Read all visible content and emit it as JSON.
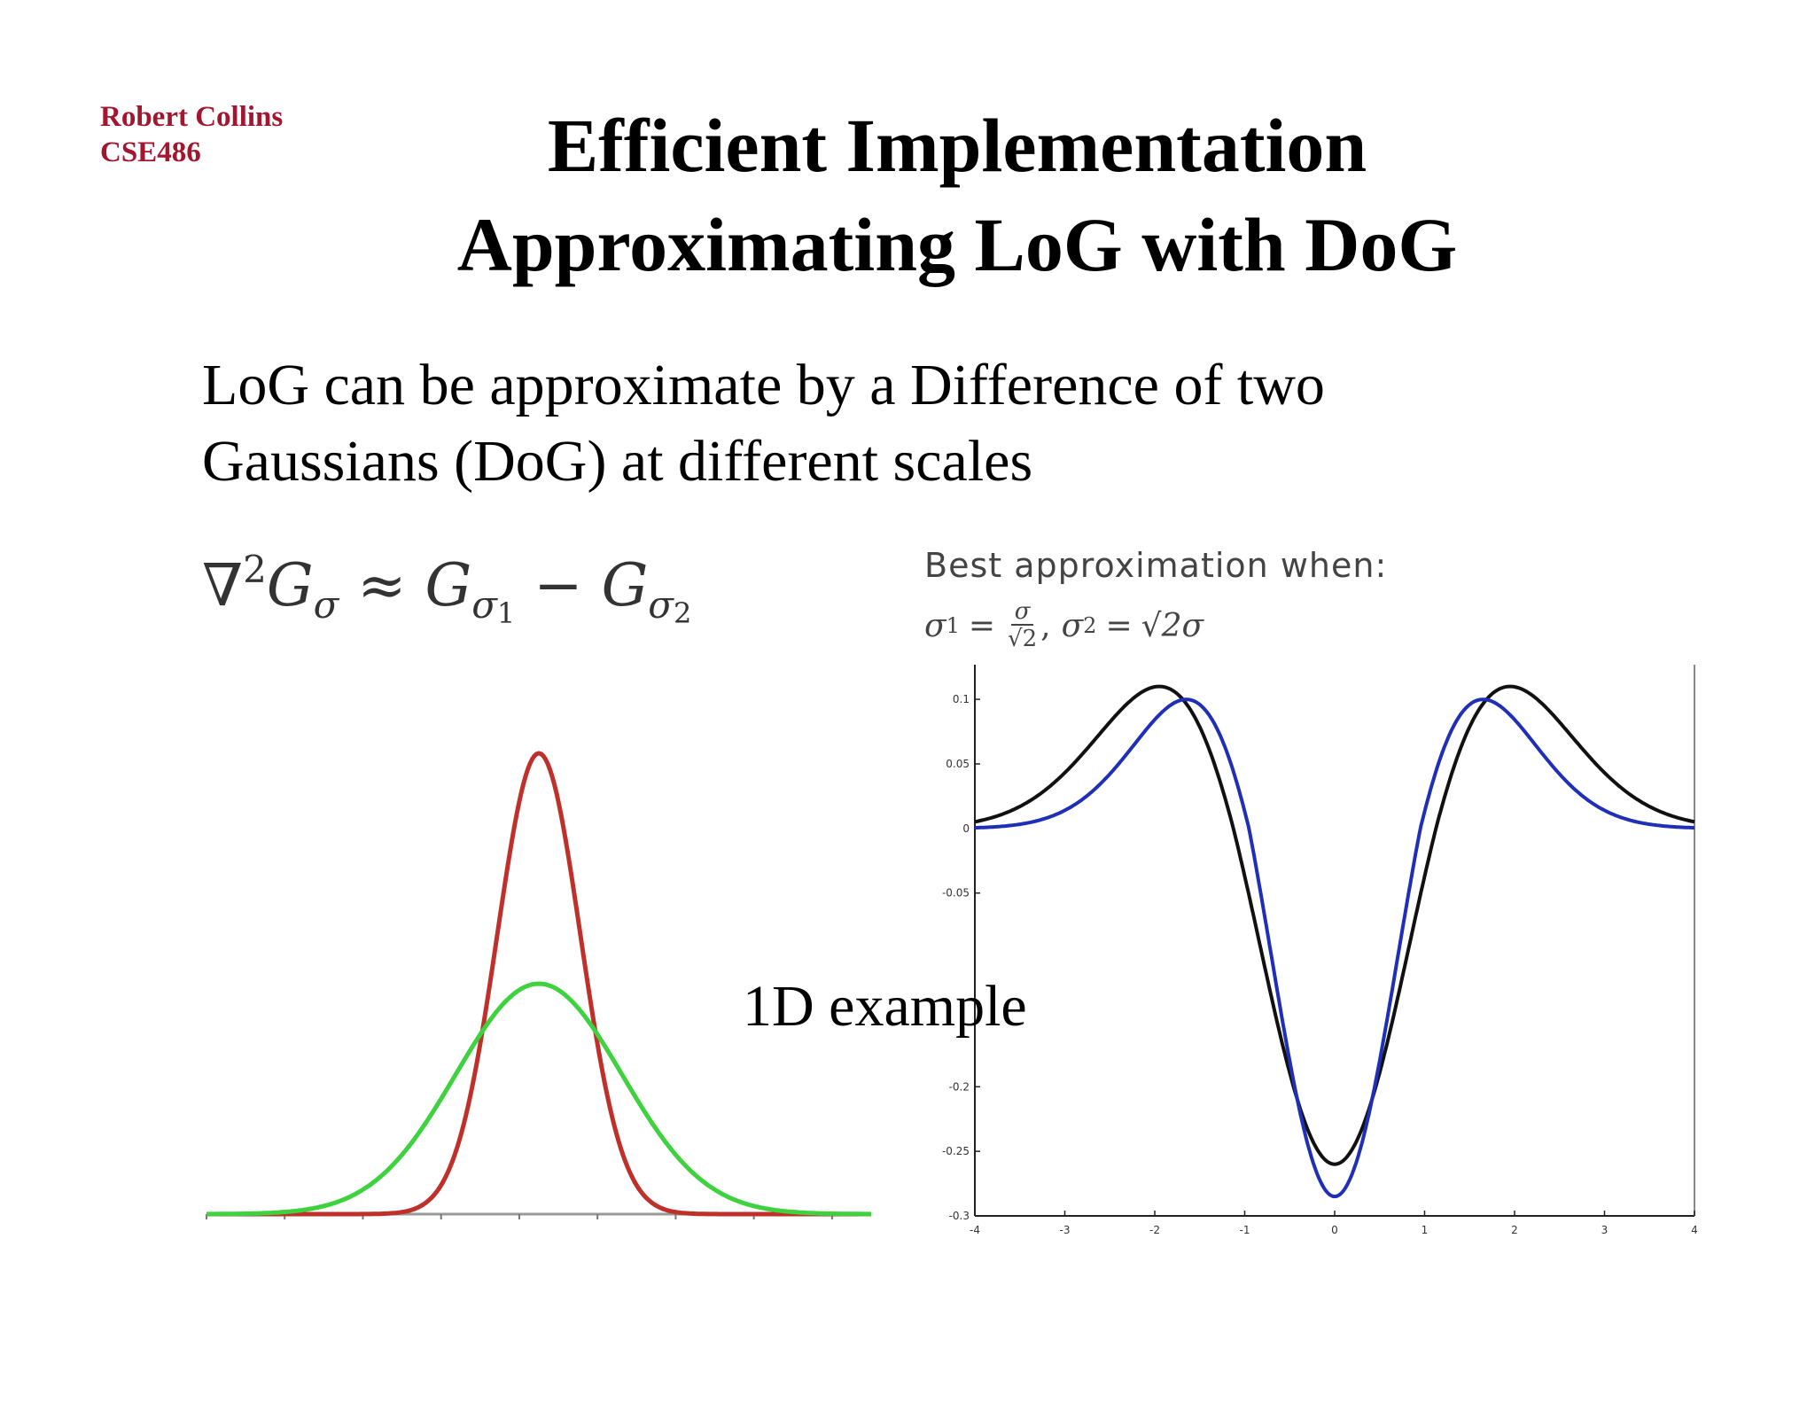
{
  "header": {
    "author_line1": "Robert Collins",
    "author_line2": "CSE486",
    "title_line1": "Efficient Implementation",
    "title_line2": "Approximating LoG with DoG"
  },
  "body": {
    "line1": "LoG can be approximate by a Difference of two",
    "line2": "Gaussians (DoG) at different scales",
    "caption": "1D example"
  },
  "formula": {
    "nabla": "∇",
    "sq": "2",
    "g": "G",
    "sigma": "σ",
    "approx": "≈",
    "minus": "−",
    "one": "1",
    "two": "2"
  },
  "best_approx": {
    "heading": "Best approximation when:",
    "sigma1_lhs": "σ",
    "sub1": "1",
    "eq": "=",
    "frac_num": "σ",
    "frac_den": "√2",
    "comma": ",",
    "sigma2_lhs": "σ",
    "sub2": "2",
    "rhs": "√2σ"
  },
  "colors": {
    "author": "#a3162f",
    "gaussian_narrow": "#c0302a",
    "gaussian_wide": "#3fd23f",
    "dog": "#111111",
    "log": "#1f2fb8"
  },
  "chart_data": [
    {
      "type": "line",
      "series": [
        {
          "color": "#c0302a",
          "sigma": 0.5
        },
        {
          "color": "#3fd23f",
          "sigma": 1.0
        }
      ],
      "xlim": [
        -4,
        4
      ],
      "grid": false
    },
    {
      "type": "line",
      "xlim": [
        -4,
        4
      ],
      "ylim": [
        -0.3,
        0.12
      ],
      "x_ticks": [
        "-4",
        "-3",
        "-2",
        "-1",
        "0",
        "1",
        "2",
        "3",
        "4"
      ],
      "y_ticks": [
        "0.1",
        "0.05",
        "0",
        "-0.05",
        "-0.2",
        "-0.25",
        "-0.3"
      ],
      "series": [
        {
          "color": "#111111",
          "min": -0.26,
          "peak": 0.11,
          "peak_x": 1.95
        },
        {
          "color": "#1f2fb8",
          "min": -0.285,
          "peak": 0.1,
          "peak_x": 1.65
        }
      ],
      "grid": false
    }
  ]
}
